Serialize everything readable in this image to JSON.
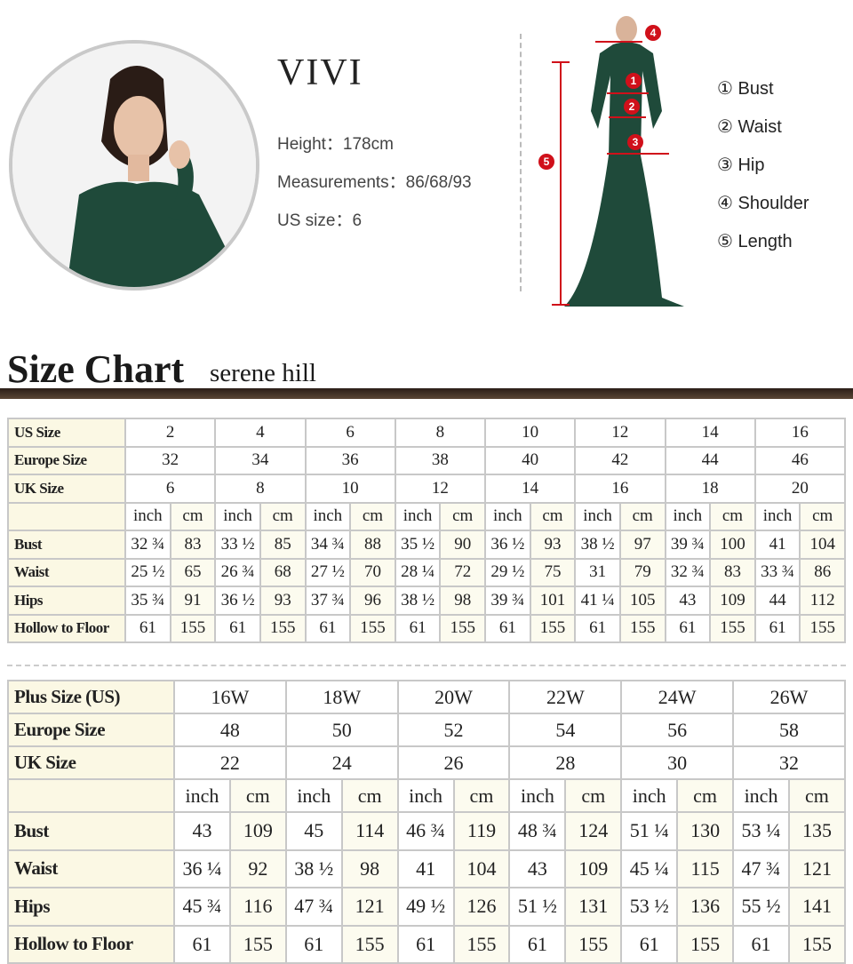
{
  "model": {
    "name": "VIVI",
    "height": "Height：178cm",
    "measurements": "Measurements：86/68/93",
    "us_size": "US size：6"
  },
  "figure_markers": [
    "1",
    "2",
    "3",
    "4",
    "5"
  ],
  "legend": [
    "① Bust",
    "② Waist",
    "③ Hip",
    "④ Shoulder",
    "⑤ Length"
  ],
  "heading": {
    "title": "Size Chart",
    "brand": "serene hill"
  },
  "colors": {
    "dress": "#1f4a3a",
    "marker": "#d0101a",
    "header_bar": "#3a2a20",
    "label_cell": "#fbf8e4"
  },
  "standard_table": {
    "size_rows": [
      {
        "label": "US Size",
        "values": [
          "2",
          "4",
          "6",
          "8",
          "10",
          "12",
          "14",
          "16"
        ]
      },
      {
        "label": "Europe Size",
        "values": [
          "32",
          "34",
          "36",
          "38",
          "40",
          "42",
          "44",
          "46"
        ]
      },
      {
        "label": "UK Size",
        "values": [
          "6",
          "8",
          "10",
          "12",
          "14",
          "16",
          "18",
          "20"
        ]
      }
    ],
    "units": [
      "inch",
      "cm"
    ],
    "measure_rows": [
      {
        "label": "Bust",
        "values": [
          "32 ¾",
          "83",
          "33 ½",
          "85",
          "34 ¾",
          "88",
          "35 ½",
          "90",
          "36 ½",
          "93",
          "38 ½",
          "97",
          "39 ¾",
          "100",
          "41",
          "104"
        ]
      },
      {
        "label": "Waist",
        "values": [
          "25 ½",
          "65",
          "26 ¾",
          "68",
          "27 ½",
          "70",
          "28 ¼",
          "72",
          "29 ½",
          "75",
          "31",
          "79",
          "32 ¾",
          "83",
          "33 ¾",
          "86"
        ]
      },
      {
        "label": "Hips",
        "values": [
          "35 ¾",
          "91",
          "36 ½",
          "93",
          "37 ¾",
          "96",
          "38 ½",
          "98",
          "39 ¾",
          "101",
          "41 ¼",
          "105",
          "43",
          "109",
          "44",
          "112"
        ]
      },
      {
        "label": "Hollow to Floor",
        "values": [
          "61",
          "155",
          "61",
          "155",
          "61",
          "155",
          "61",
          "155",
          "61",
          "155",
          "61",
          "155",
          "61",
          "155",
          "61",
          "155"
        ]
      }
    ]
  },
  "plus_table": {
    "size_rows": [
      {
        "label": "Plus Size (US)",
        "values": [
          "16W",
          "18W",
          "20W",
          "22W",
          "24W",
          "26W"
        ]
      },
      {
        "label": "Europe Size",
        "values": [
          "48",
          "50",
          "52",
          "54",
          "56",
          "58"
        ]
      },
      {
        "label": "UK Size",
        "values": [
          "22",
          "24",
          "26",
          "28",
          "30",
          "32"
        ]
      }
    ],
    "units": [
      "inch",
      "cm"
    ],
    "measure_rows": [
      {
        "label": "Bust",
        "values": [
          "43",
          "109",
          "45",
          "114",
          "46 ¾",
          "119",
          "48 ¾",
          "124",
          "51 ¼",
          "130",
          "53 ¼",
          "135"
        ]
      },
      {
        "label": "Waist",
        "values": [
          "36 ¼",
          "92",
          "38 ½",
          "98",
          "41",
          "104",
          "43",
          "109",
          "45 ¼",
          "115",
          "47 ¾",
          "121"
        ]
      },
      {
        "label": "Hips",
        "values": [
          "45 ¾",
          "116",
          "47 ¾",
          "121",
          "49 ½",
          "126",
          "51 ½",
          "131",
          "53 ½",
          "136",
          "55 ½",
          "141"
        ]
      },
      {
        "label": "Hollow to Floor",
        "values": [
          "61",
          "155",
          "61",
          "155",
          "61",
          "155",
          "61",
          "155",
          "61",
          "155",
          "61",
          "155"
        ]
      }
    ]
  }
}
